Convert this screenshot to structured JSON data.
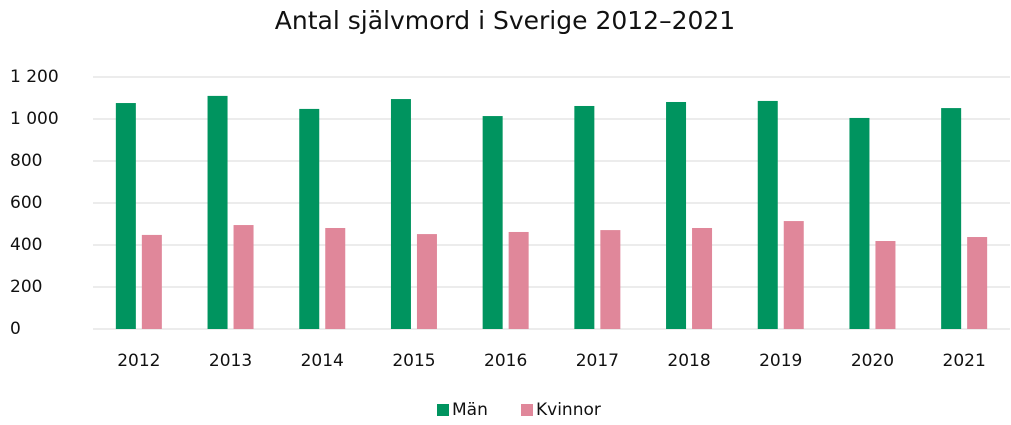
{
  "chart_data": {
    "type": "bar",
    "title": "Antal självmord i Sverige 2012–2021",
    "categories": [
      "2012",
      "2013",
      "2014",
      "2015",
      "2016",
      "2017",
      "2018",
      "2019",
      "2020",
      "2021"
    ],
    "series": [
      {
        "name": "Män",
        "color": "#00945f",
        "values": [
          1076,
          1110,
          1048,
          1095,
          1014,
          1062,
          1081,
          1086,
          1005,
          1052
        ]
      },
      {
        "name": "Kvinnor",
        "color": "#e0879a",
        "values": [
          448,
          495,
          481,
          452,
          462,
          471,
          481,
          514,
          419,
          438
        ]
      }
    ],
    "ylim": [
      0,
      1200
    ],
    "yticks": [
      0,
      200,
      400,
      600,
      800,
      {
        "value": 1000,
        "label": "1 000"
      },
      {
        "value": 1200,
        "label": "1 200"
      }
    ],
    "grid": true,
    "legend": "bottom"
  }
}
